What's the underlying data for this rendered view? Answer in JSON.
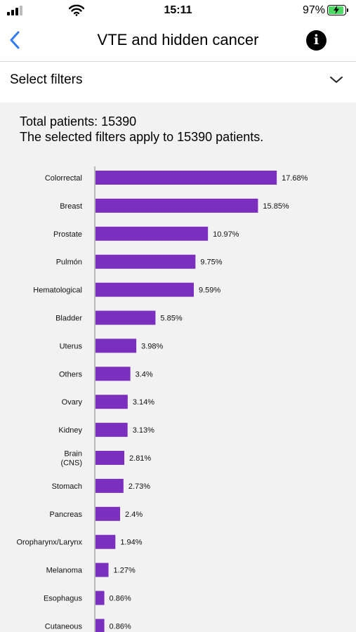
{
  "status_bar": {
    "time": "15:11",
    "battery_percent": "97%"
  },
  "nav": {
    "title": "VTE and hidden cancer",
    "back_icon": "chevron-left-icon",
    "info_icon": "info-circle-icon",
    "accent_color": "#2f7cf6"
  },
  "filters": {
    "label": "Select filters",
    "icon": "chevron-down-icon"
  },
  "summary": {
    "total": "Total patients: 15390",
    "applies": "The selected filters apply to 15390 patients."
  },
  "chart_data": {
    "type": "bar",
    "orientation": "horizontal",
    "bar_color": "#7b2fbf",
    "categories": [
      "Colorrectal",
      "Breast",
      "Prostate",
      "Pulmón",
      "Hematological",
      "Bladder",
      "Uterus",
      "Others",
      "Ovary",
      "Kidney",
      "Brain\n(CNS)",
      "Stomach",
      "Pancreas",
      "Oropharynx/Larynx",
      "Melanoma",
      "Esophagus",
      "Cutaneous"
    ],
    "values": [
      17.68,
      15.85,
      10.97,
      9.75,
      9.59,
      5.85,
      3.98,
      3.4,
      3.14,
      3.13,
      2.81,
      2.73,
      2.4,
      1.94,
      1.27,
      0.86,
      0.86
    ],
    "value_labels": [
      "17.68%",
      "15.85%",
      "10.97%",
      "9.75%",
      "9.59%",
      "5.85%",
      "3.98%",
      "3.4%",
      "3.14%",
      "3.13%",
      "2.81%",
      "2.73%",
      "2.4%",
      "1.94%",
      "1.27%",
      "0.86%",
      "0.86%"
    ],
    "xlim": [
      0,
      20
    ],
    "grid": false
  }
}
